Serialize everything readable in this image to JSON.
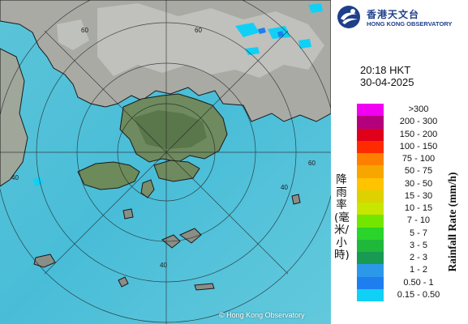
{
  "logo": {
    "name_cn": "香港天文台",
    "name_en": "HONG KONG OBSERVATORY"
  },
  "time_display": {
    "time": "20:18 HKT",
    "date": "30-04-2025"
  },
  "legend": {
    "title_cn": "降雨率(毫米/小時)",
    "title_en": "Rainfall Rate (mm/h)",
    "items": [
      {
        "label": ">300",
        "color": "#f200f2"
      },
      {
        "label": "200 - 300",
        "color": "#b5007d"
      },
      {
        "label": "150 - 200",
        "color": "#e0001a"
      },
      {
        "label": "100 - 150",
        "color": "#ff2a00"
      },
      {
        "label": "75 - 100",
        "color": "#ff8000"
      },
      {
        "label": "50 - 75",
        "color": "#f7a600"
      },
      {
        "label": "30 - 50",
        "color": "#ffc300"
      },
      {
        "label": "15 - 30",
        "color": "#ded100"
      },
      {
        "label": "10 - 15",
        "color": "#c8e600"
      },
      {
        "label": "7 - 10",
        "color": "#73e600"
      },
      {
        "label": "5 - 7",
        "color": "#2ad42a"
      },
      {
        "label": "3 - 5",
        "color": "#1fb83b"
      },
      {
        "label": "2 - 3",
        "color": "#189a52"
      },
      {
        "label": "1 - 2",
        "color": "#2c98ea"
      },
      {
        "label": "0.50 - 1",
        "color": "#1e7ef0"
      },
      {
        "label": "0.15 - 0.50",
        "color": "#11d0f5"
      }
    ]
  },
  "map": {
    "range_ring_labels": [
      "60",
      "60",
      "40",
      "40",
      "60",
      "40"
    ],
    "copyright": "© Hong Kong Observatory"
  }
}
